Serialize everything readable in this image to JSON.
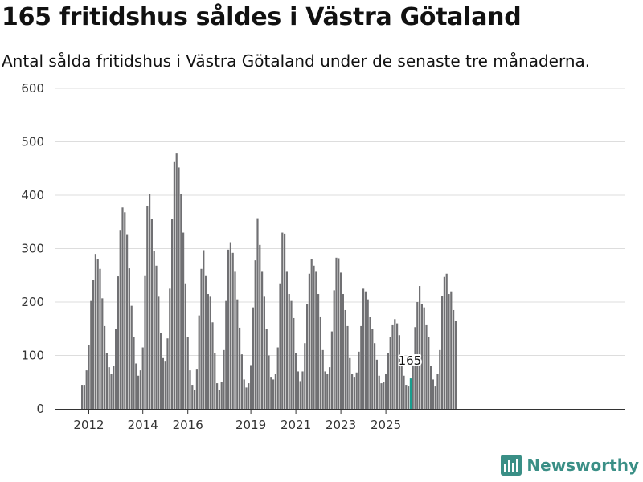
{
  "title": "165 fritidshus såldes i Västra Götaland",
  "subtitle": "Antal sålda fritidshus i Västra Götaland under de senaste tre månaderna.",
  "brand": "Newsworthy",
  "colors": {
    "bar": "#707073",
    "highlight": "#1a9e8f",
    "grid": "#dddddd",
    "brand": "#3a8f86"
  },
  "chart_data": {
    "type": "bar",
    "title": "165 fritidshus såldes i Västra Götaland",
    "xlabel": "",
    "ylabel": "",
    "ylim": [
      0,
      600
    ],
    "yticks": [
      0,
      100,
      200,
      300,
      400,
      500,
      600
    ],
    "xticks": [
      "2012",
      "2014",
      "2016",
      "2019",
      "2021",
      "2023",
      "2025"
    ],
    "xtick_index": [
      3,
      27,
      47,
      75,
      95,
      115,
      135
    ],
    "annotation": {
      "index": 146,
      "text": "165"
    },
    "values": [
      45,
      45,
      72,
      120,
      202,
      242,
      290,
      280,
      262,
      207,
      155,
      105,
      78,
      65,
      80,
      150,
      248,
      335,
      377,
      368,
      327,
      263,
      193,
      135,
      85,
      62,
      72,
      115,
      250,
      380,
      402,
      355,
      295,
      268,
      210,
      142,
      95,
      90,
      132,
      225,
      355,
      462,
      478,
      452,
      402,
      330,
      235,
      135,
      72,
      45,
      35,
      75,
      175,
      262,
      297,
      250,
      215,
      210,
      162,
      105,
      48,
      35,
      50,
      110,
      202,
      298,
      312,
      292,
      258,
      205,
      152,
      102,
      55,
      40,
      48,
      82,
      190,
      278,
      357,
      307,
      258,
      210,
      150,
      100,
      60,
      55,
      65,
      115,
      235,
      330,
      328,
      258,
      215,
      202,
      170,
      105,
      70,
      52,
      70,
      123,
      197,
      253,
      280,
      268,
      258,
      215,
      173,
      110,
      70,
      65,
      78,
      145,
      222,
      283,
      282,
      255,
      215,
      185,
      155,
      95,
      65,
      60,
      68,
      107,
      155,
      225,
      220,
      205,
      172,
      150,
      123,
      92,
      62,
      48,
      50,
      65,
      105,
      135,
      158,
      168,
      160,
      138,
      102,
      62,
      45,
      42,
      57,
      92,
      153,
      200,
      230,
      197,
      190,
      158,
      135,
      80,
      55,
      42,
      65,
      110,
      212,
      247,
      253,
      215,
      220,
      185,
      165
    ]
  }
}
